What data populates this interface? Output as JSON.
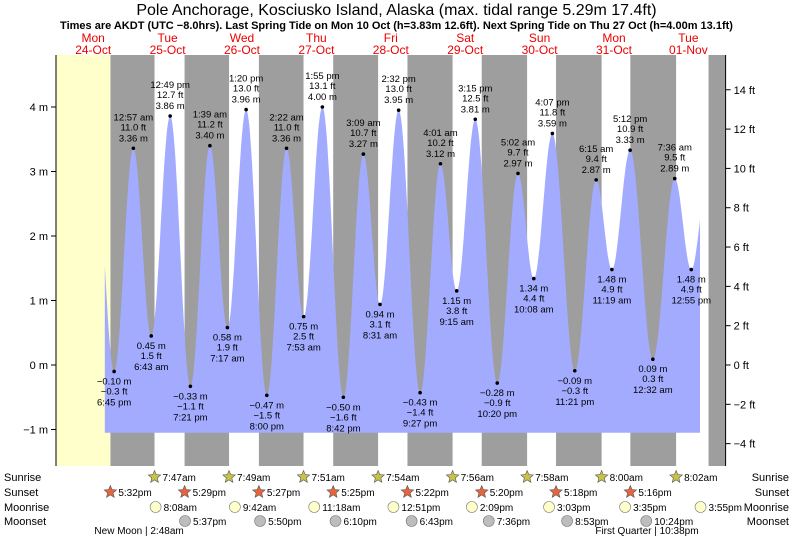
{
  "chart_data": {
    "type": "area",
    "title": "Pole Anchorage, Kosciusko Island, Alaska (max. tidal range 5.29m 17.4ft)",
    "subtitle": "Times are AKDT (UTC −8.0hrs). Last Spring Tide on Mon 10 Oct (h=3.83m 12.6ft). Next Spring Tide on Thu 27 Oct (h=4.00m 13.1ft)",
    "ylabel_left": "m",
    "ylim_m": [
      -1.3,
      4.8
    ],
    "left_ticks": [
      {
        "v": -1,
        "label": "−1 m"
      },
      {
        "v": 0,
        "label": "0 m"
      },
      {
        "v": 1,
        "label": "1 m"
      },
      {
        "v": 2,
        "label": "2 m"
      },
      {
        "v": 3,
        "label": "3 m"
      },
      {
        "v": 4,
        "label": "4 m"
      }
    ],
    "right_ticks": [
      {
        "v": -4,
        "label": "−4 ft"
      },
      {
        "v": -2,
        "label": "−2 ft"
      },
      {
        "v": 0,
        "label": "0 ft"
      },
      {
        "v": 2,
        "label": "2 ft"
      },
      {
        "v": 4,
        "label": "4 ft"
      },
      {
        "v": 6,
        "label": "6 ft"
      },
      {
        "v": 8,
        "label": "8 ft"
      },
      {
        "v": 10,
        "label": "10 ft"
      },
      {
        "v": 12,
        "label": "12 ft"
      },
      {
        "v": 14,
        "label": "14 ft"
      }
    ],
    "x_range_hours": [
      0,
      216
    ],
    "days": [
      {
        "day": "Mon",
        "date": "24-Oct"
      },
      {
        "day": "Tue",
        "date": "25-Oct"
      },
      {
        "day": "Wed",
        "date": "26-Oct"
      },
      {
        "day": "Thu",
        "date": "27-Oct"
      },
      {
        "day": "Fri",
        "date": "28-Oct"
      },
      {
        "day": "Sat",
        "date": "29-Oct"
      },
      {
        "day": "Sun",
        "date": "30-Oct"
      },
      {
        "day": "Mon",
        "date": "31-Oct"
      },
      {
        "day": "Tue",
        "date": "01-Nov"
      }
    ],
    "tides": [
      {
        "type": "low",
        "t": 18.75,
        "m": "−0.10 m",
        "ft": "−0.3 ft",
        "time": "6:45 pm",
        "h": -0.1
      },
      {
        "type": "high",
        "t": 24.95,
        "m": "3.36 m",
        "ft": "11.0 ft",
        "time": "12:57 am",
        "h": 3.36
      },
      {
        "type": "low",
        "t": 30.72,
        "m": "0.45 m",
        "ft": "1.5 ft",
        "time": "6:43 am",
        "h": 0.45
      },
      {
        "type": "high",
        "t": 36.82,
        "m": "3.86 m",
        "ft": "12.7 ft",
        "time": "12:49 pm",
        "h": 3.86
      },
      {
        "type": "low",
        "t": 43.35,
        "m": "−0.33 m",
        "ft": "−1.1 ft",
        "time": "7:21 pm",
        "h": -0.33
      },
      {
        "type": "high",
        "t": 49.65,
        "m": "3.40 m",
        "ft": "11.2 ft",
        "time": "1:39 am",
        "h": 3.4
      },
      {
        "type": "low",
        "t": 55.28,
        "m": "0.58 m",
        "ft": "1.9 ft",
        "time": "7:17 am",
        "h": 0.58
      },
      {
        "type": "high",
        "t": 61.33,
        "m": "3.96 m",
        "ft": "13.0 ft",
        "time": "1:20 pm",
        "h": 3.96
      },
      {
        "type": "low",
        "t": 68.0,
        "m": "−0.47 m",
        "ft": "−1.5 ft",
        "time": "8:00 pm",
        "h": -0.47
      },
      {
        "type": "high",
        "t": 74.37,
        "m": "3.36 m",
        "ft": "11.0 ft",
        "time": "2:22 am",
        "h": 3.36
      },
      {
        "type": "low",
        "t": 79.88,
        "m": "0.75 m",
        "ft": "2.5 ft",
        "time": "7:53 am",
        "h": 0.75
      },
      {
        "type": "high",
        "t": 85.92,
        "m": "4.00 m",
        "ft": "13.1 ft",
        "time": "1:55 pm",
        "h": 4.0
      },
      {
        "type": "low",
        "t": 92.7,
        "m": "−0.50 m",
        "ft": "−1.6 ft",
        "time": "8:42 pm",
        "h": -0.5
      },
      {
        "type": "high",
        "t": 99.15,
        "m": "3.27 m",
        "ft": "10.7 ft",
        "time": "3:09 am",
        "h": 3.27
      },
      {
        "type": "low",
        "t": 104.52,
        "m": "0.94 m",
        "ft": "3.1 ft",
        "time": "8:31 am",
        "h": 0.94
      },
      {
        "type": "high",
        "t": 110.53,
        "m": "3.95 m",
        "ft": "13.0 ft",
        "time": "2:32 pm",
        "h": 3.95
      },
      {
        "type": "low",
        "t": 117.45,
        "m": "−0.43 m",
        "ft": "−1.4 ft",
        "time": "9:27 pm",
        "h": -0.43
      },
      {
        "type": "high",
        "t": 124.02,
        "m": "3.12 m",
        "ft": "10.2 ft",
        "time": "4:01 am",
        "h": 3.12
      },
      {
        "type": "low",
        "t": 129.25,
        "m": "1.15 m",
        "ft": "3.8 ft",
        "time": "9:15 am",
        "h": 1.15
      },
      {
        "type": "high",
        "t": 135.25,
        "m": "3.81 m",
        "ft": "12.5 ft",
        "time": "3:15 pm",
        "h": 3.81
      },
      {
        "type": "low",
        "t": 142.33,
        "m": "−0.28 m",
        "ft": "−0.9 ft",
        "time": "10:20 pm",
        "h": -0.28
      },
      {
        "type": "high",
        "t": 149.03,
        "m": "2.97 m",
        "ft": "9.7 ft",
        "time": "5:02 am",
        "h": 2.97
      },
      {
        "type": "low",
        "t": 154.13,
        "m": "1.34 m",
        "ft": "4.4 ft",
        "time": "10:08 am",
        "h": 1.34
      },
      {
        "type": "high",
        "t": 160.12,
        "m": "3.59 m",
        "ft": "11.8 ft",
        "time": "4:07 pm",
        "h": 3.59
      },
      {
        "type": "low",
        "t": 167.35,
        "m": "−0.09 m",
        "ft": "−0.3 ft",
        "time": "11:21 pm",
        "h": -0.09
      },
      {
        "type": "high",
        "t": 174.25,
        "m": "2.87 m",
        "ft": "9.4 ft",
        "time": "6:15 am",
        "h": 2.87
      },
      {
        "type": "low",
        "t": 179.32,
        "m": "1.48 m",
        "ft": "4.9 ft",
        "time": "11:19 am",
        "h": 1.48
      },
      {
        "type": "high",
        "t": 185.2,
        "m": "3.33 m",
        "ft": "10.9 ft",
        "time": "5:12 pm",
        "h": 3.33
      },
      {
        "type": "low",
        "t": 192.53,
        "m": "0.09 m",
        "ft": "0.3 ft",
        "time": "12:32 am",
        "h": 0.09
      },
      {
        "type": "high",
        "t": 199.6,
        "m": "2.89 m",
        "ft": "9.5 ft",
        "time": "7:36 am",
        "h": 2.89
      },
      {
        "type": "low",
        "t": 204.92,
        "m": "1.48 m",
        "ft": "4.9 ft",
        "time": "12:55 pm",
        "h": 1.48
      }
    ],
    "sunrise": [
      {
        "t": 31.78,
        "label": "7:47am"
      },
      {
        "t": 55.82,
        "label": "7:49am"
      },
      {
        "t": 79.85,
        "label": "7:51am"
      },
      {
        "t": 103.9,
        "label": "7:54am"
      },
      {
        "t": 127.93,
        "label": "7:56am"
      },
      {
        "t": 151.97,
        "label": "7:58am"
      },
      {
        "t": 176.0,
        "label": "8:00am"
      },
      {
        "t": 200.03,
        "label": "8:02am"
      }
    ],
    "sunset": [
      {
        "t": 17.53,
        "label": "5:32pm"
      },
      {
        "t": 41.48,
        "label": "5:29pm"
      },
      {
        "t": 65.45,
        "label": "5:27pm"
      },
      {
        "t": 89.42,
        "label": "5:25pm"
      },
      {
        "t": 113.37,
        "label": "5:22pm"
      },
      {
        "t": 137.33,
        "label": "5:20pm"
      },
      {
        "t": 161.3,
        "label": "5:18pm"
      },
      {
        "t": 185.27,
        "label": "5:16pm"
      }
    ],
    "moonrise": [
      {
        "t": 32.13,
        "label": "8:08am"
      },
      {
        "t": 57.7,
        "label": "9:42am"
      },
      {
        "t": 83.3,
        "label": "11:18am"
      },
      {
        "t": 108.85,
        "label": "12:51pm"
      },
      {
        "t": 134.15,
        "label": "2:09pm"
      },
      {
        "t": 159.05,
        "label": "3:03pm"
      },
      {
        "t": 183.58,
        "label": "3:35pm"
      },
      {
        "t": 207.92,
        "label": "3:55pm"
      }
    ],
    "moonset": [
      {
        "t": 41.62,
        "label": "5:37pm"
      },
      {
        "t": 65.83,
        "label": "5:50pm"
      },
      {
        "t": 90.17,
        "label": "6:10pm"
      },
      {
        "t": 114.72,
        "label": "6:43pm"
      },
      {
        "t": 139.6,
        "label": "7:36pm"
      },
      {
        "t": 164.88,
        "label": "8:53pm"
      },
      {
        "t": 190.4,
        "label": "10:24pm"
      }
    ],
    "row_labels": [
      "Sunrise",
      "Sunset",
      "Moonrise",
      "Moonset"
    ],
    "moon_phases": [
      {
        "t": 26.8,
        "label": "New Moon | 2:48am"
      },
      {
        "t": 190.63,
        "label": "First Quarter | 10:38pm"
      }
    ],
    "colors": {
      "water": "#a3abff",
      "night": "#9e9e9e",
      "day": "#ffffff",
      "edge": "#ffffcc",
      "day_header": "#ee0000",
      "sun_icon": "#c9c24a",
      "sunset_icon": "#e8643c",
      "moonrise_icon": "#ffffcc",
      "moonset_icon": "#bdbdbd"
    }
  }
}
